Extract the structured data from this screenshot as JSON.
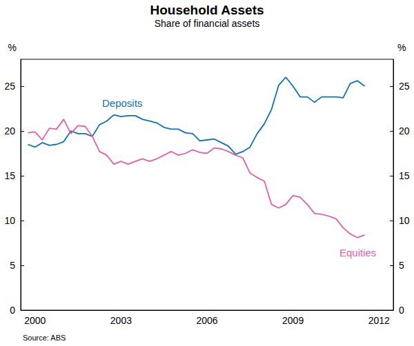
{
  "chart_data": {
    "type": "line",
    "title": "Household Assets",
    "subtitle": "Share of financial assets",
    "ylabel": "%",
    "source": "Source: ABS",
    "x": [
      2000.25,
      2000.5,
      2000.75,
      2001,
      2001.25,
      2001.5,
      2001.75,
      2002,
      2002.25,
      2002.5,
      2002.75,
      2003,
      2003.25,
      2003.5,
      2003.75,
      2004,
      2004.25,
      2004.5,
      2004.75,
      2005,
      2005.25,
      2005.5,
      2005.75,
      2006,
      2006.25,
      2006.5,
      2006.75,
      2007,
      2007.25,
      2007.5,
      2007.75,
      2008,
      2008.25,
      2008.5,
      2008.75,
      2009,
      2009.25,
      2009.5,
      2009.75,
      2010,
      2010.25,
      2010.5,
      2010.75,
      2011,
      2011.25,
      2011.5,
      2011.75,
      2012
    ],
    "series": [
      {
        "name": "Deposits",
        "color": "#0b72b5",
        "values": [
          18.5,
          18.2,
          18.7,
          18.4,
          18.5,
          18.8,
          20.0,
          19.7,
          19.7,
          19.4,
          20.7,
          21.1,
          21.8,
          21.6,
          21.7,
          21.7,
          21.3,
          21.1,
          20.9,
          20.4,
          20.2,
          20.2,
          19.8,
          19.7,
          18.9,
          19.0,
          19.1,
          18.7,
          18.3,
          17.4,
          17.7,
          18.2,
          19.7,
          20.8,
          22.4,
          25.1,
          26.0,
          25.0,
          23.8,
          23.8,
          23.2,
          23.8,
          23.8,
          23.8,
          23.7,
          25.3,
          25.6,
          25.0
        ]
      },
      {
        "name": "Equities",
        "color": "#e85ea6",
        "values": [
          19.8,
          19.9,
          19.0,
          20.3,
          20.2,
          21.3,
          19.7,
          20.6,
          20.5,
          19.4,
          17.7,
          17.3,
          16.3,
          16.6,
          16.3,
          16.6,
          16.9,
          16.6,
          16.9,
          17.3,
          17.7,
          17.3,
          17.5,
          17.9,
          17.6,
          17.5,
          18.1,
          18.0,
          17.7,
          17.3,
          17.0,
          15.3,
          14.8,
          14.4,
          11.8,
          11.4,
          11.8,
          12.8,
          12.6,
          11.8,
          10.8,
          10.7,
          10.5,
          10.2,
          9.2,
          8.5,
          8.1,
          8.4
        ]
      }
    ],
    "xlim": [
      2000,
      2013
    ],
    "xticks": [
      {
        "value": 2000.5,
        "label": "2000"
      },
      {
        "value": 2003.5,
        "label": "2003"
      },
      {
        "value": 2006.5,
        "label": "2006"
      },
      {
        "value": 2009.5,
        "label": "2009"
      },
      {
        "value": 2012.5,
        "label": "2012"
      }
    ],
    "ylim": [
      0,
      28
    ],
    "yticks": [
      0,
      5,
      10,
      15,
      20,
      25
    ],
    "grid": false
  }
}
